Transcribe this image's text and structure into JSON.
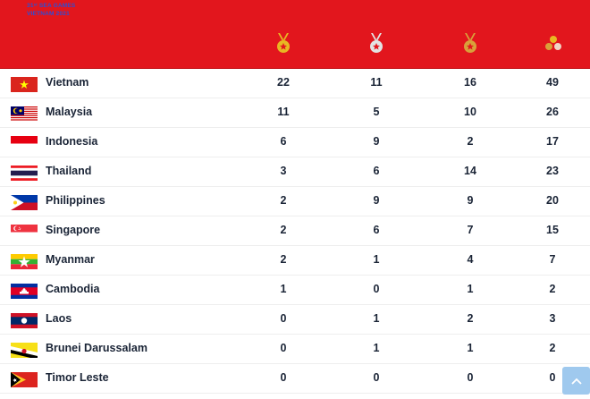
{
  "header": {
    "logo_line1": "31ˢᵗ SEA GAMES",
    "logo_line2": "VIETNAM 2021",
    "icons": [
      "gold-medal-icon",
      "silver-medal-icon",
      "bronze-medal-icon",
      "total-medals-icon"
    ]
  },
  "colors": {
    "header_bg": "#e2161d",
    "gold": "#e8b722",
    "silver": "#e3e3e3",
    "bronze": "#d9a03a",
    "text": "#1a2436"
  },
  "rows": [
    {
      "country": "Vietnam",
      "gold": "22",
      "silver": "11",
      "bronze": "16",
      "total": "49"
    },
    {
      "country": "Malaysia",
      "gold": "11",
      "silver": "5",
      "bronze": "10",
      "total": "26"
    },
    {
      "country": "Indonesia",
      "gold": "6",
      "silver": "9",
      "bronze": "2",
      "total": "17"
    },
    {
      "country": "Thailand",
      "gold": "3",
      "silver": "6",
      "bronze": "14",
      "total": "23"
    },
    {
      "country": "Philippines",
      "gold": "2",
      "silver": "9",
      "bronze": "9",
      "total": "20"
    },
    {
      "country": "Singapore",
      "gold": "2",
      "silver": "6",
      "bronze": "7",
      "total": "15"
    },
    {
      "country": "Myanmar",
      "gold": "2",
      "silver": "1",
      "bronze": "4",
      "total": "7"
    },
    {
      "country": "Cambodia",
      "gold": "1",
      "silver": "0",
      "bronze": "1",
      "total": "2"
    },
    {
      "country": "Laos",
      "gold": "0",
      "silver": "1",
      "bronze": "2",
      "total": "3"
    },
    {
      "country": "Brunei Darussalam",
      "gold": "0",
      "silver": "1",
      "bronze": "1",
      "total": "2"
    },
    {
      "country": "Timor Leste",
      "gold": "0",
      "silver": "0",
      "bronze": "0",
      "total": "0"
    }
  ],
  "scroll_top": {
    "icon": "chevron-up-icon"
  }
}
